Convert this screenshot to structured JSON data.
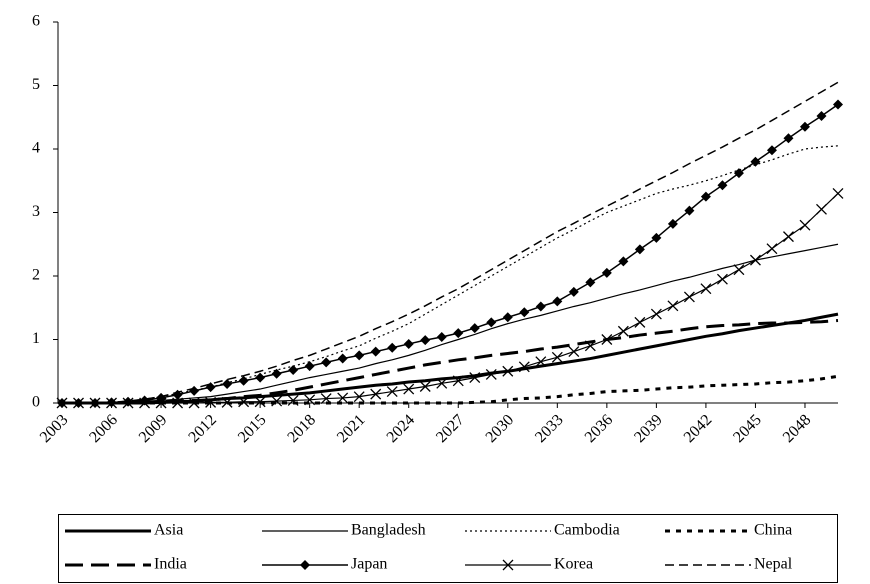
{
  "chart_data": {
    "type": "line",
    "x": [
      2003,
      2004,
      2005,
      2006,
      2007,
      2008,
      2009,
      2010,
      2011,
      2012,
      2013,
      2014,
      2015,
      2016,
      2017,
      2018,
      2019,
      2020,
      2021,
      2022,
      2023,
      2024,
      2025,
      2026,
      2027,
      2028,
      2029,
      2030,
      2031,
      2032,
      2033,
      2034,
      2035,
      2036,
      2037,
      2038,
      2039,
      2040,
      2041,
      2042,
      2043,
      2044,
      2045,
      2046,
      2047,
      2048,
      2049,
      2050
    ],
    "xlim": [
      2003,
      2050
    ],
    "xticks": [
      2003,
      2006,
      2009,
      2012,
      2015,
      2018,
      2021,
      2024,
      2027,
      2030,
      2033,
      2036,
      2039,
      2042,
      2045,
      2048
    ],
    "ylim": [
      0,
      6
    ],
    "yticks": [
      0,
      1,
      2,
      3,
      4,
      5,
      6
    ],
    "series": [
      {
        "name": "Asia",
        "color": "#000000",
        "dash": "solid",
        "width": 3,
        "marker": "none",
        "values": [
          0,
          0,
          0,
          0,
          0,
          0,
          0.01,
          0.02,
          0.03,
          0.05,
          0.07,
          0.08,
          0.1,
          0.12,
          0.14,
          0.16,
          0.19,
          0.22,
          0.25,
          0.28,
          0.3,
          0.33,
          0.35,
          0.38,
          0.4,
          0.43,
          0.47,
          0.5,
          0.54,
          0.58,
          0.62,
          0.66,
          0.7,
          0.75,
          0.8,
          0.85,
          0.9,
          0.95,
          1.0,
          1.05,
          1.09,
          1.14,
          1.18,
          1.22,
          1.26,
          1.3,
          1.35,
          1.4
        ]
      },
      {
        "name": "Bangladesh",
        "color": "#000000",
        "dash": "solid",
        "width": 1.2,
        "marker": "none",
        "values": [
          0,
          0,
          0,
          0.01,
          0.02,
          0.03,
          0.04,
          0.06,
          0.08,
          0.1,
          0.14,
          0.18,
          0.22,
          0.28,
          0.34,
          0.4,
          0.45,
          0.5,
          0.55,
          0.62,
          0.68,
          0.75,
          0.83,
          0.92,
          1.0,
          1.08,
          1.17,
          1.25,
          1.32,
          1.38,
          1.45,
          1.52,
          1.58,
          1.65,
          1.72,
          1.78,
          1.85,
          1.92,
          1.98,
          2.05,
          2.12,
          2.18,
          2.25,
          2.3,
          2.35,
          2.4,
          2.45,
          2.5
        ]
      },
      {
        "name": "Cambodia",
        "color": "#000000",
        "dash": "dot",
        "width": 1.2,
        "marker": "none",
        "values": [
          0,
          0,
          0,
          0.01,
          0.03,
          0.06,
          0.1,
          0.15,
          0.2,
          0.25,
          0.32,
          0.38,
          0.45,
          0.52,
          0.58,
          0.65,
          0.73,
          0.82,
          0.9,
          1.02,
          1.13,
          1.25,
          1.4,
          1.55,
          1.7,
          1.85,
          2.0,
          2.15,
          2.3,
          2.45,
          2.6,
          2.73,
          2.87,
          3.0,
          3.1,
          3.2,
          3.3,
          3.37,
          3.43,
          3.5,
          3.58,
          3.67,
          3.75,
          3.83,
          3.92,
          4.0,
          4.03,
          4.05
        ]
      },
      {
        "name": "China",
        "color": "#000000",
        "dash": "bolddot",
        "width": 3,
        "marker": "none",
        "values": [
          0,
          0,
          0,
          0,
          0,
          0,
          0,
          0,
          0,
          0,
          0,
          0,
          0,
          0,
          0,
          0,
          0,
          0,
          0,
          0,
          0,
          0,
          0,
          0,
          0,
          0.01,
          0.02,
          0.05,
          0.07,
          0.08,
          0.1,
          0.13,
          0.15,
          0.18,
          0.19,
          0.2,
          0.22,
          0.24,
          0.25,
          0.27,
          0.28,
          0.29,
          0.3,
          0.32,
          0.33,
          0.35,
          0.38,
          0.42
        ]
      },
      {
        "name": "India",
        "color": "#000000",
        "dash": "longdash",
        "width": 3,
        "marker": "none",
        "values": [
          0,
          0,
          0,
          0,
          0,
          0.01,
          0.02,
          0.03,
          0.04,
          0.05,
          0.07,
          0.1,
          0.12,
          0.16,
          0.2,
          0.25,
          0.3,
          0.35,
          0.4,
          0.45,
          0.5,
          0.55,
          0.6,
          0.64,
          0.68,
          0.71,
          0.75,
          0.78,
          0.81,
          0.85,
          0.88,
          0.92,
          0.96,
          1.0,
          1.03,
          1.07,
          1.1,
          1.13,
          1.17,
          1.2,
          1.22,
          1.23,
          1.25,
          1.26,
          1.26,
          1.27,
          1.28,
          1.3
        ]
      },
      {
        "name": "Japan",
        "color": "#000000",
        "dash": "solid",
        "width": 1.5,
        "marker": "diamond",
        "values": [
          0,
          0,
          0,
          0.01,
          0.02,
          0.04,
          0.08,
          0.13,
          0.19,
          0.25,
          0.3,
          0.35,
          0.4,
          0.46,
          0.52,
          0.58,
          0.64,
          0.7,
          0.75,
          0.81,
          0.87,
          0.93,
          0.99,
          1.04,
          1.1,
          1.18,
          1.27,
          1.35,
          1.43,
          1.52,
          1.6,
          1.75,
          1.9,
          2.05,
          2.23,
          2.42,
          2.6,
          2.82,
          3.03,
          3.25,
          3.43,
          3.62,
          3.8,
          3.98,
          4.17,
          4.35,
          4.52,
          4.7
        ]
      },
      {
        "name": "Korea",
        "color": "#000000",
        "dash": "solid",
        "width": 1.2,
        "marker": "x",
        "values": [
          0,
          0,
          0,
          0,
          0,
          0,
          0,
          0,
          0,
          0.01,
          0.01,
          0.02,
          0.02,
          0.03,
          0.04,
          0.05,
          0.07,
          0.08,
          0.1,
          0.14,
          0.18,
          0.22,
          0.26,
          0.31,
          0.35,
          0.4,
          0.45,
          0.5,
          0.57,
          0.65,
          0.72,
          0.81,
          0.9,
          1.0,
          1.13,
          1.27,
          1.4,
          1.53,
          1.67,
          1.8,
          1.95,
          2.1,
          2.25,
          2.43,
          2.62,
          2.8,
          3.05,
          3.3
        ]
      },
      {
        "name": "Nepal",
        "color": "#000000",
        "dash": "dash",
        "width": 1.5,
        "marker": "none",
        "values": [
          0,
          0,
          0,
          0.01,
          0.03,
          0.06,
          0.1,
          0.17,
          0.23,
          0.3,
          0.37,
          0.43,
          0.5,
          0.58,
          0.67,
          0.75,
          0.85,
          0.95,
          1.05,
          1.17,
          1.28,
          1.4,
          1.53,
          1.67,
          1.8,
          1.95,
          2.1,
          2.25,
          2.4,
          2.55,
          2.7,
          2.83,
          2.97,
          3.1,
          3.23,
          3.37,
          3.5,
          3.63,
          3.77,
          3.9,
          4.03,
          4.17,
          4.3,
          4.45,
          4.6,
          4.75,
          4.9,
          5.05
        ]
      }
    ]
  }
}
